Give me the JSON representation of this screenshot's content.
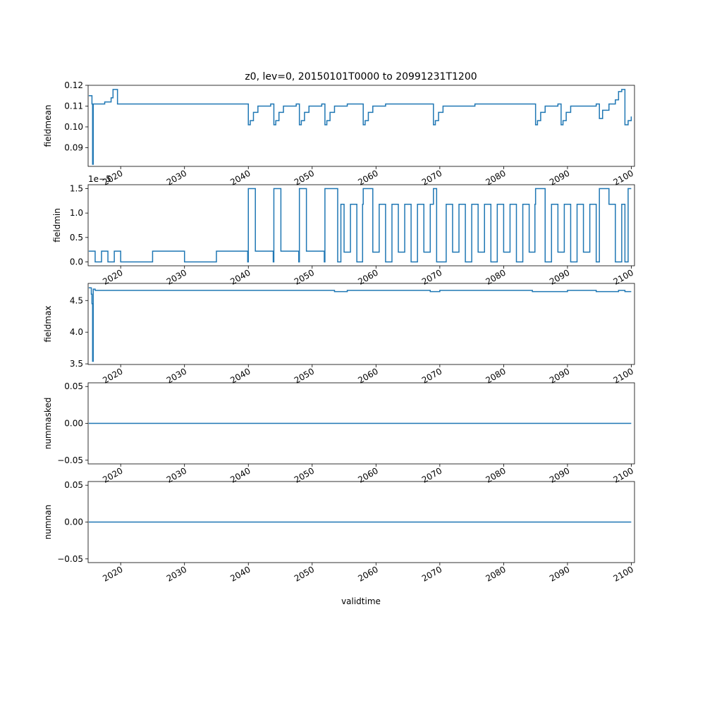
{
  "figure": {
    "title": "z0, lev=0, 20150101T0000 to 20991231T1200",
    "xlabel": "validtime",
    "line_color": "#1f77b4"
  },
  "chart_data": [
    {
      "type": "line",
      "ylabel": "fieldmean",
      "xlim": [
        2014.9,
        2100.5
      ],
      "ylim": [
        0.081,
        0.12
      ],
      "yticks": [
        0.09,
        0.1,
        0.11,
        0.12
      ],
      "ytick_labels": [
        "0.09",
        "0.10",
        "0.11",
        "0.12"
      ],
      "xticks": [
        2020,
        2030,
        2040,
        2050,
        2060,
        2070,
        2080,
        2090,
        2100
      ],
      "xtick_labels": [
        "2020",
        "2030",
        "2040",
        "2050",
        "2060",
        "2070",
        "2080",
        "2090",
        "2100"
      ],
      "series": [
        {
          "x": [
            2015.0,
            2015.5,
            2015.6,
            2015.65,
            2015.7,
            2016.5,
            2017.5,
            2018.5,
            2018.8,
            2019.5,
            2020.5,
            2025.5,
            2030.5,
            2035.5,
            2039.5,
            2040.0,
            2040.3,
            2040.8,
            2041.5,
            2043.5,
            2044.0,
            2044.3,
            2044.8,
            2045.5,
            2047.5,
            2048.0,
            2048.3,
            2048.8,
            2049.5,
            2051.5,
            2052.0,
            2052.3,
            2052.8,
            2053.5,
            2055.5,
            2057.5,
            2058.0,
            2058.3,
            2058.8,
            2059.5,
            2061.5,
            2066.5,
            2068.5,
            2069.0,
            2069.3,
            2069.8,
            2070.5,
            2075.5,
            2080.5,
            2084.5,
            2085.0,
            2085.3,
            2085.8,
            2086.5,
            2088.5,
            2089.0,
            2089.3,
            2089.8,
            2090.5,
            2094.5,
            2095.0,
            2095.5,
            2096.5,
            2097.5,
            2098.0,
            2098.5,
            2099.0,
            2099.5,
            2099.99
          ],
          "y": [
            0.115,
            0.111,
            0.082,
            0.082,
            0.111,
            0.111,
            0.112,
            0.114,
            0.118,
            0.111,
            0.111,
            0.111,
            0.111,
            0.111,
            0.111,
            0.101,
            0.103,
            0.107,
            0.11,
            0.111,
            0.101,
            0.103,
            0.107,
            0.11,
            0.111,
            0.101,
            0.103,
            0.107,
            0.11,
            0.111,
            0.101,
            0.103,
            0.107,
            0.11,
            0.111,
            0.111,
            0.101,
            0.103,
            0.107,
            0.11,
            0.111,
            0.111,
            0.111,
            0.101,
            0.103,
            0.107,
            0.11,
            0.111,
            0.111,
            0.111,
            0.101,
            0.103,
            0.107,
            0.11,
            0.111,
            0.101,
            0.103,
            0.107,
            0.11,
            0.111,
            0.104,
            0.108,
            0.111,
            0.113,
            0.117,
            0.118,
            0.101,
            0.103,
            0.105
          ]
        }
      ]
    },
    {
      "type": "line",
      "ylabel": "fieldmin",
      "offset_label": "1e−5",
      "xlim": [
        2014.9,
        2100.5
      ],
      "ylim": [
        -0.08,
        1.58
      ],
      "yticks": [
        0.0,
        0.5,
        1.0,
        1.5
      ],
      "ytick_labels": [
        "0.0",
        "0.5",
        "1.0",
        "1.5"
      ],
      "xticks": [
        2020,
        2030,
        2040,
        2050,
        2060,
        2070,
        2080,
        2090,
        2100
      ],
      "xtick_labels": [
        "2020",
        "2030",
        "2040",
        "2050",
        "2060",
        "2070",
        "2080",
        "2090",
        "2100"
      ],
      "series": [
        {
          "x": [
            2015.0,
            2016.0,
            2017.0,
            2018.0,
            2019.0,
            2020.0,
            2025.0,
            2030.0,
            2035.0,
            2039.9,
            2040.0,
            2041.0,
            2041.1,
            2043.9,
            2044.0,
            2045.0,
            2045.1,
            2047.9,
            2048.0,
            2049.0,
            2049.1,
            2051.9,
            2052.0,
            2053.5,
            2054.0,
            2054.5,
            2055.0,
            2056.0,
            2057.0,
            2057.9,
            2058.0,
            2059.0,
            2059.5,
            2060.5,
            2061.5,
            2062.5,
            2063.5,
            2064.5,
            2065.5,
            2066.5,
            2067.5,
            2068.5,
            2069.0,
            2069.5,
            2071.0,
            2072.0,
            2073.0,
            2074.0,
            2075.0,
            2076.0,
            2077.0,
            2078.0,
            2079.0,
            2080.0,
            2081.0,
            2082.0,
            2083.0,
            2084.0,
            2084.9,
            2085.0,
            2086.0,
            2086.5,
            2087.5,
            2088.5,
            2089.5,
            2090.5,
            2091.5,
            2092.5,
            2093.5,
            2094.5,
            2095.0,
            2096.0,
            2096.5,
            2097.5,
            2098.5,
            2099.0,
            2099.5,
            2099.99
          ],
          "y": [
            0.22,
            0.0,
            0.22,
            0.0,
            0.22,
            0.0,
            0.22,
            0.0,
            0.22,
            0.0,
            1.5,
            1.5,
            0.22,
            0.0,
            1.5,
            1.5,
            0.22,
            0.0,
            1.5,
            1.5,
            0.22,
            0.0,
            1.5,
            1.5,
            0.0,
            1.18,
            0.2,
            1.18,
            0.0,
            1.18,
            1.5,
            1.5,
            0.2,
            1.18,
            0.0,
            1.18,
            0.2,
            1.18,
            0.0,
            1.18,
            0.2,
            1.18,
            1.5,
            0.0,
            1.18,
            0.2,
            1.18,
            0.0,
            1.18,
            0.2,
            1.18,
            0.0,
            1.18,
            0.2,
            1.18,
            0.0,
            1.18,
            0.2,
            1.18,
            1.5,
            1.5,
            0.0,
            1.18,
            0.2,
            1.18,
            0.0,
            1.18,
            0.2,
            1.18,
            0.0,
            1.5,
            1.5,
            1.18,
            0.0,
            1.18,
            0.0,
            1.5,
            1.5
          ]
        }
      ]
    },
    {
      "type": "line",
      "ylabel": "fieldmax",
      "xlim": [
        2014.9,
        2100.5
      ],
      "ylim": [
        3.49,
        4.77
      ],
      "yticks": [
        3.5,
        4.0,
        4.5
      ],
      "ytick_labels": [
        "3.5",
        "4.0",
        "4.5"
      ],
      "xticks": [
        2020,
        2030,
        2040,
        2050,
        2060,
        2070,
        2080,
        2090,
        2100
      ],
      "xtick_labels": [
        "2020",
        "2030",
        "2040",
        "2050",
        "2060",
        "2070",
        "2080",
        "2090",
        "2100"
      ],
      "series": [
        {
          "x": [
            2015.0,
            2015.4,
            2015.5,
            2015.6,
            2015.65,
            2015.7,
            2016.0,
            2020.0,
            2025.0,
            2030.0,
            2035.0,
            2040.0,
            2045.0,
            2050.0,
            2053.5,
            2054.5,
            2055.5,
            2060.0,
            2065.0,
            2068.5,
            2069.5,
            2070.0,
            2075.0,
            2080.0,
            2084.5,
            2085.5,
            2090.0,
            2094.5,
            2095.5,
            2098.0,
            2099.0,
            2099.99
          ],
          "y": [
            4.7,
            4.6,
            4.45,
            3.54,
            3.54,
            4.68,
            4.66,
            4.66,
            4.66,
            4.66,
            4.66,
            4.66,
            4.66,
            4.66,
            4.64,
            4.64,
            4.66,
            4.66,
            4.66,
            4.64,
            4.64,
            4.66,
            4.66,
            4.66,
            4.64,
            4.64,
            4.66,
            4.64,
            4.64,
            4.66,
            4.64,
            4.64
          ]
        }
      ]
    },
    {
      "type": "line",
      "ylabel": "nummasked",
      "xlim": [
        2014.9,
        2100.5
      ],
      "ylim": [
        -0.055,
        0.055
      ],
      "yticks": [
        -0.05,
        0.0,
        0.05
      ],
      "ytick_labels": [
        "−0.05",
        "0.00",
        "0.05"
      ],
      "xticks": [
        2020,
        2030,
        2040,
        2050,
        2060,
        2070,
        2080,
        2090,
        2100
      ],
      "xtick_labels": [
        "2020",
        "2030",
        "2040",
        "2050",
        "2060",
        "2070",
        "2080",
        "2090",
        "2100"
      ],
      "series": [
        {
          "x": [
            2015.0,
            2099.99
          ],
          "y": [
            0.0,
            0.0
          ]
        }
      ]
    },
    {
      "type": "line",
      "ylabel": "numnan",
      "xlim": [
        2014.9,
        2100.5
      ],
      "ylim": [
        -0.055,
        0.055
      ],
      "yticks": [
        -0.05,
        0.0,
        0.05
      ],
      "ytick_labels": [
        "−0.05",
        "0.00",
        "0.05"
      ],
      "xticks": [
        2020,
        2030,
        2040,
        2050,
        2060,
        2070,
        2080,
        2090,
        2100
      ],
      "xtick_labels": [
        "2020",
        "2030",
        "2040",
        "2050",
        "2060",
        "2070",
        "2080",
        "2090",
        "2100"
      ],
      "series": [
        {
          "x": [
            2015.0,
            2099.99
          ],
          "y": [
            0.0,
            0.0
          ]
        }
      ]
    }
  ]
}
